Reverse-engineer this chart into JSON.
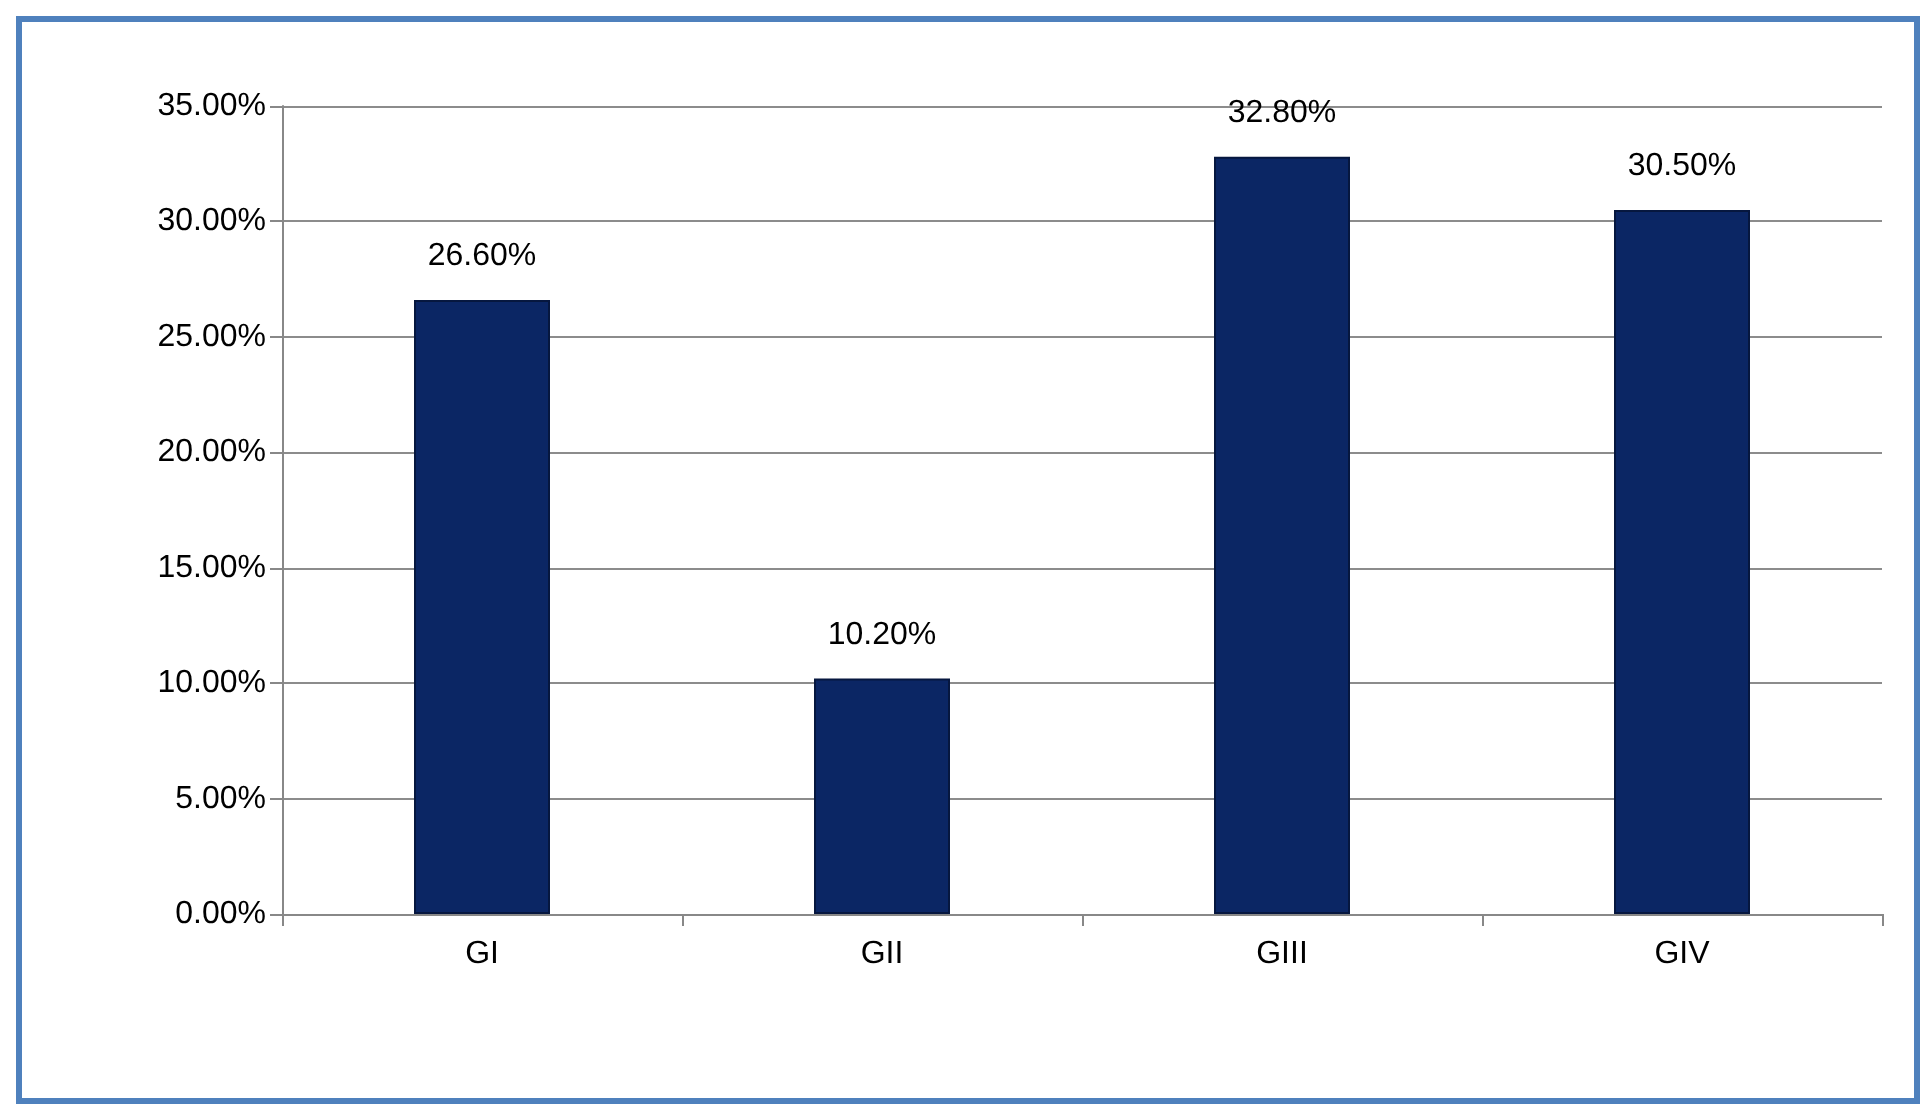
{
  "chart_data": {
    "type": "bar",
    "categories": [
      "GI",
      "GII",
      "GIII",
      "GIV"
    ],
    "values": [
      26.6,
      10.2,
      32.8,
      30.5
    ],
    "value_labels": [
      "26.60%",
      "10.20%",
      "32.80%",
      "30.50%"
    ],
    "color": "#0b2664",
    "ylim": [
      0,
      35
    ],
    "yticks": [
      {
        "value": 0,
        "label": "0.00%"
      },
      {
        "value": 5,
        "label": "5.00%"
      },
      {
        "value": 10,
        "label": "10.00%"
      },
      {
        "value": 15,
        "label": "15.00%"
      },
      {
        "value": 20,
        "label": "20.00%"
      },
      {
        "value": 25,
        "label": "25.00%"
      },
      {
        "value": 30,
        "label": "30.00%"
      },
      {
        "value": 35,
        "label": "35.00%"
      }
    ],
    "grid": "y"
  }
}
